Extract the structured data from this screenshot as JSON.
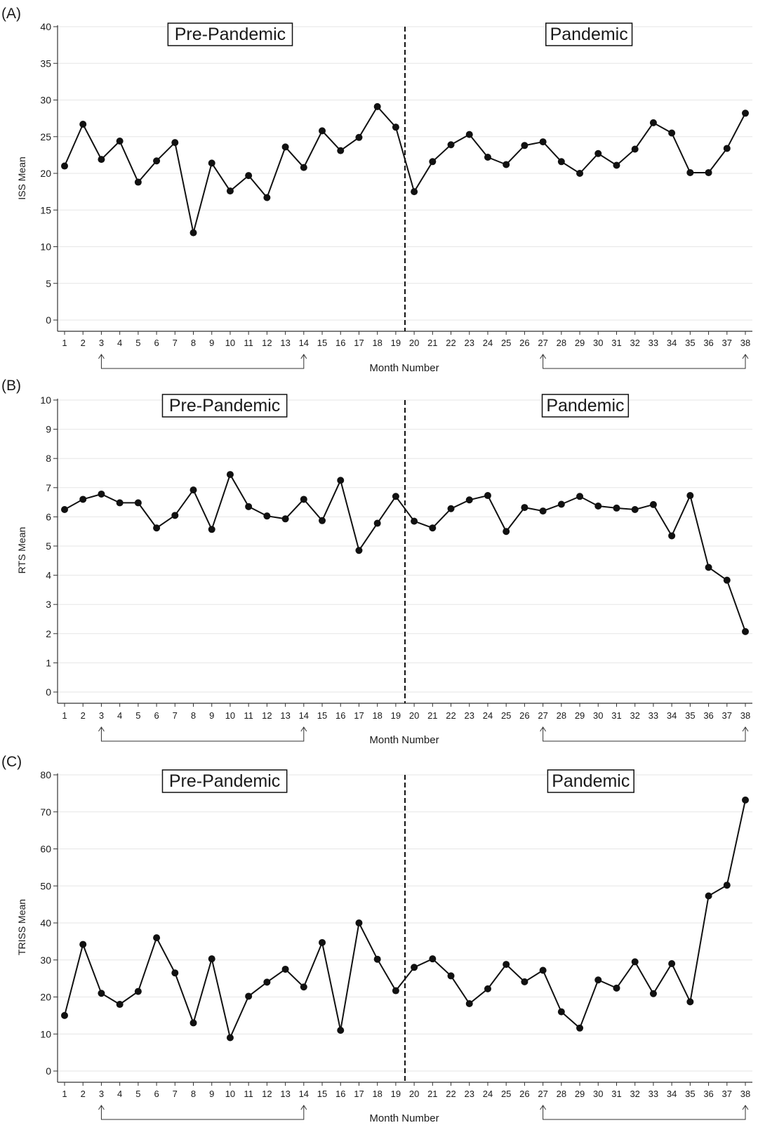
{
  "chart_data": [
    {
      "panel": "(A)",
      "type": "line",
      "ylabel": "ISS Mean",
      "xlabel": "Month Number",
      "ylim": [
        0,
        40
      ],
      "yticks": [
        0,
        5,
        10,
        15,
        20,
        25,
        30,
        35,
        40
      ],
      "x": [
        1,
        2,
        3,
        4,
        5,
        6,
        7,
        8,
        9,
        10,
        11,
        12,
        13,
        14,
        15,
        16,
        17,
        18,
        19,
        20,
        21,
        22,
        23,
        24,
        25,
        26,
        27,
        28,
        29,
        30,
        31,
        32,
        33,
        34,
        35,
        36,
        37,
        38
      ],
      "values": [
        21.0,
        26.7,
        21.9,
        24.4,
        18.8,
        21.7,
        24.2,
        11.9,
        21.4,
        17.6,
        19.7,
        16.7,
        23.6,
        20.8,
        25.8,
        23.1,
        24.9,
        29.1,
        26.3,
        17.5,
        21.6,
        23.9,
        25.3,
        22.2,
        21.2,
        23.8,
        24.3,
        21.6,
        20.0,
        22.7,
        21.1,
        23.3,
        26.9,
        25.5,
        20.1,
        20.1,
        23.4,
        28.2
      ],
      "annotations": [
        {
          "text": "Pre-Pandemic",
          "x": 10
        },
        {
          "text": "Pandemic",
          "x": 29.5
        }
      ],
      "divider_x": 19.5,
      "brackets": [
        [
          3,
          14
        ],
        [
          27,
          38
        ]
      ],
      "grid": true
    },
    {
      "panel": "(B)",
      "type": "line",
      "ylabel": "RTS Mean",
      "xlabel": "Month Number",
      "ylim": [
        0,
        10
      ],
      "yticks": [
        0,
        1,
        2,
        3,
        4,
        5,
        6,
        7,
        8,
        9,
        10
      ],
      "x": [
        1,
        2,
        3,
        4,
        5,
        6,
        7,
        8,
        9,
        10,
        11,
        12,
        13,
        14,
        15,
        16,
        17,
        18,
        19,
        20,
        21,
        22,
        23,
        24,
        25,
        26,
        27,
        28,
        29,
        30,
        31,
        32,
        33,
        34,
        35,
        36,
        37,
        38
      ],
      "values": [
        6.25,
        6.6,
        6.78,
        6.48,
        6.48,
        5.62,
        6.05,
        6.92,
        5.57,
        7.45,
        6.35,
        6.03,
        5.93,
        6.6,
        5.87,
        7.25,
        4.85,
        5.78,
        6.7,
        5.85,
        5.62,
        6.28,
        6.58,
        6.73,
        5.5,
        6.32,
        6.2,
        6.43,
        6.7,
        6.37,
        6.3,
        6.25,
        6.42,
        5.35,
        6.73,
        4.27,
        3.83,
        2.07
      ],
      "annotations": [
        {
          "text": "Pre-Pandemic",
          "x": 9.7
        },
        {
          "text": "Pandemic",
          "x": 29.3
        }
      ],
      "divider_x": 19.5,
      "brackets": [
        [
          3,
          14
        ],
        [
          27,
          38
        ]
      ],
      "grid": true
    },
    {
      "panel": "(C)",
      "type": "line",
      "ylabel": "TRISS Mean",
      "xlabel": "Month Number",
      "ylim": [
        0,
        80
      ],
      "yticks": [
        0,
        10,
        20,
        30,
        40,
        50,
        60,
        70,
        80
      ],
      "x": [
        1,
        2,
        3,
        4,
        5,
        6,
        7,
        8,
        9,
        10,
        11,
        12,
        13,
        14,
        15,
        16,
        17,
        18,
        19,
        20,
        21,
        22,
        23,
        24,
        25,
        26,
        27,
        28,
        29,
        30,
        31,
        32,
        33,
        34,
        35,
        36,
        37,
        38
      ],
      "values": [
        15.0,
        34.2,
        21.0,
        18.0,
        21.5,
        36.0,
        26.5,
        13.0,
        30.3,
        9.0,
        20.2,
        24.0,
        27.5,
        22.7,
        34.7,
        11.0,
        40.0,
        30.2,
        21.7,
        28.0,
        30.3,
        25.7,
        18.2,
        22.2,
        28.8,
        24.1,
        27.2,
        16.0,
        11.6,
        24.6,
        22.4,
        29.5,
        20.9,
        29.0,
        18.7,
        47.3,
        50.2,
        73.2
      ],
      "annotations": [
        {
          "text": "Pre-Pandemic",
          "x": 9.7
        },
        {
          "text": "Pandemic",
          "x": 29.6
        }
      ],
      "divider_x": 19.5,
      "brackets": [
        [
          3,
          14
        ],
        [
          27,
          38
        ]
      ],
      "grid": true
    }
  ]
}
